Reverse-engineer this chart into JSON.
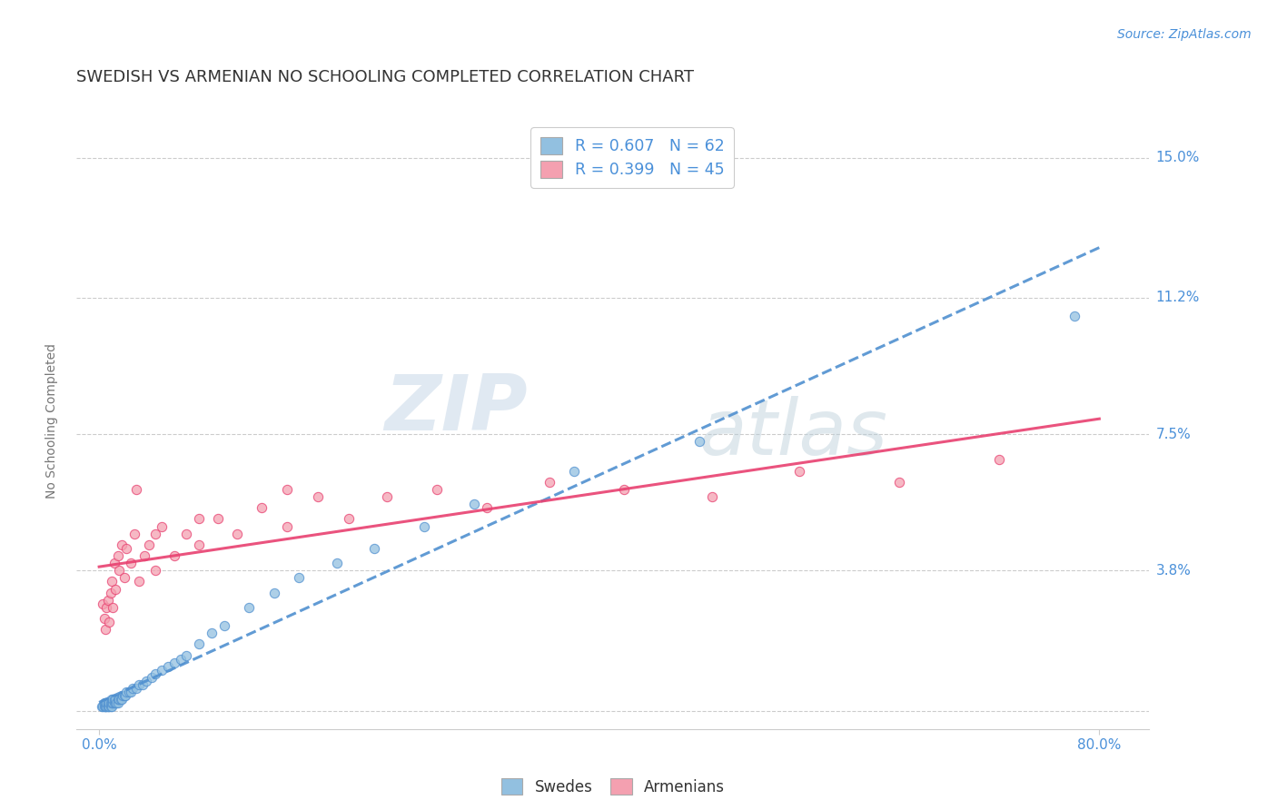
{
  "title": "SWEDISH VS ARMENIAN NO SCHOOLING COMPLETED CORRELATION CHART",
  "source": "Source: ZipAtlas.com",
  "ylabel": "No Schooling Completed",
  "xlabel": "",
  "watermark_zip": "ZIP",
  "watermark_atlas": "atlas",
  "legend_line1": "R = 0.607   N = 62",
  "legend_line2": "R = 0.399   N = 45",
  "legend_label_blue": "Swedes",
  "legend_label_pink": "Armenians",
  "color_blue": "#92c0e0",
  "color_pink": "#f4a0b0",
  "color_blue_line": "#5090d0",
  "color_pink_line": "#e84070",
  "color_blue_text": "#4a90d9",
  "ytick_labels": [
    "",
    "3.8%",
    "7.5%",
    "11.2%",
    "15.0%"
  ],
  "ytick_vals": [
    0.0,
    0.038,
    0.075,
    0.112,
    0.15
  ],
  "xtick_labels": [
    "0.0%",
    "80.0%"
  ],
  "xtick_vals": [
    0.0,
    0.8
  ],
  "xlim": [
    -0.018,
    0.84
  ],
  "ylim": [
    -0.005,
    0.162
  ],
  "grid_color": "#cccccc",
  "background_color": "#ffffff",
  "title_fontsize": 13,
  "axis_label_fontsize": 10,
  "tick_fontsize": 11,
  "source_fontsize": 10,
  "swedes_x": [
    0.002,
    0.003,
    0.004,
    0.004,
    0.005,
    0.005,
    0.005,
    0.006,
    0.006,
    0.007,
    0.007,
    0.007,
    0.008,
    0.008,
    0.009,
    0.009,
    0.01,
    0.01,
    0.01,
    0.011,
    0.011,
    0.012,
    0.012,
    0.013,
    0.013,
    0.014,
    0.015,
    0.015,
    0.016,
    0.017,
    0.018,
    0.019,
    0.02,
    0.021,
    0.022,
    0.024,
    0.025,
    0.027,
    0.03,
    0.032,
    0.035,
    0.038,
    0.042,
    0.045,
    0.05,
    0.055,
    0.06,
    0.065,
    0.07,
    0.08,
    0.09,
    0.1,
    0.12,
    0.14,
    0.16,
    0.19,
    0.22,
    0.26,
    0.3,
    0.38,
    0.48,
    0.78
  ],
  "swedes_y": [
    0.001,
    0.001,
    0.001,
    0.002,
    0.001,
    0.001,
    0.002,
    0.001,
    0.002,
    0.001,
    0.001,
    0.002,
    0.001,
    0.002,
    0.001,
    0.002,
    0.001,
    0.002,
    0.003,
    0.002,
    0.003,
    0.002,
    0.003,
    0.002,
    0.003,
    0.002,
    0.002,
    0.003,
    0.003,
    0.003,
    0.003,
    0.004,
    0.004,
    0.004,
    0.005,
    0.005,
    0.005,
    0.006,
    0.006,
    0.007,
    0.007,
    0.008,
    0.009,
    0.01,
    0.011,
    0.012,
    0.013,
    0.014,
    0.015,
    0.018,
    0.021,
    0.023,
    0.028,
    0.032,
    0.036,
    0.04,
    0.044,
    0.05,
    0.056,
    0.065,
    0.073,
    0.107
  ],
  "armenians_x": [
    0.003,
    0.004,
    0.005,
    0.006,
    0.007,
    0.008,
    0.009,
    0.01,
    0.011,
    0.012,
    0.013,
    0.015,
    0.016,
    0.018,
    0.02,
    0.022,
    0.025,
    0.028,
    0.032,
    0.036,
    0.04,
    0.045,
    0.05,
    0.06,
    0.07,
    0.08,
    0.095,
    0.11,
    0.13,
    0.15,
    0.175,
    0.2,
    0.23,
    0.27,
    0.31,
    0.36,
    0.42,
    0.49,
    0.56,
    0.64,
    0.72,
    0.15,
    0.08,
    0.03,
    0.045
  ],
  "armenians_y": [
    0.029,
    0.025,
    0.022,
    0.028,
    0.03,
    0.024,
    0.032,
    0.035,
    0.028,
    0.04,
    0.033,
    0.042,
    0.038,
    0.045,
    0.036,
    0.044,
    0.04,
    0.048,
    0.035,
    0.042,
    0.045,
    0.038,
    0.05,
    0.042,
    0.048,
    0.045,
    0.052,
    0.048,
    0.055,
    0.05,
    0.058,
    0.052,
    0.058,
    0.06,
    0.055,
    0.062,
    0.06,
    0.058,
    0.065,
    0.062,
    0.068,
    0.06,
    0.052,
    0.06,
    0.048
  ]
}
